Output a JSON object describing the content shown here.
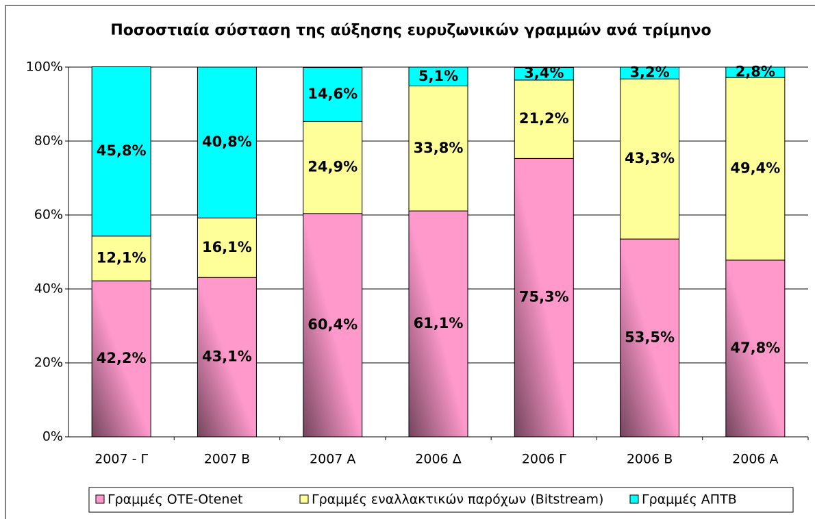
{
  "chart_data": {
    "type": "bar",
    "stacked": true,
    "title": "Ποσοστιαία σύσταση της αύξησης ευρυζωνικών γραμμών ανά τρίμηνο",
    "categories": [
      "2007 - Γ",
      "2007 Β",
      "2007 Α",
      "2006 Δ",
      "2006 Γ",
      "2006 Β",
      "2006 Α"
    ],
    "series": [
      {
        "name": "Γραμμές ΟΤΕ-Otenet",
        "color": "#ff99cc",
        "values": [
          42.2,
          43.1,
          60.4,
          61.1,
          75.3,
          53.5,
          47.8
        ],
        "value_labels": [
          "42,2%",
          "43,1%",
          "60,4%",
          "61,1%",
          "75,3%",
          "53,5%",
          "47,8%"
        ]
      },
      {
        "name": "Γραμμές εναλλακτικών παρόχων (Bitstream)",
        "color": "#ffff99",
        "values": [
          12.1,
          16.1,
          24.9,
          33.8,
          21.2,
          43.3,
          49.4
        ],
        "value_labels": [
          "12,1%",
          "16,1%",
          "24,9%",
          "33,8%",
          "21,2%",
          "43,3%",
          "49,4%"
        ]
      },
      {
        "name": "Γραμμές ΑΠΤΒ",
        "color": "#00ffff",
        "values": [
          45.8,
          40.8,
          14.6,
          5.1,
          3.4,
          3.2,
          2.8
        ],
        "value_labels": [
          "45,8%",
          "40,8%",
          "14,6%",
          "5,1%",
          "3,4%",
          "3,2%",
          "2,8%"
        ]
      }
    ],
    "ylim": [
      0,
      100
    ],
    "yticks": [
      {
        "value": 0,
        "label": "0%"
      },
      {
        "value": 20,
        "label": "20%"
      },
      {
        "value": 40,
        "label": "40%"
      },
      {
        "value": 60,
        "label": "60%"
      },
      {
        "value": 80,
        "label": "80%"
      },
      {
        "value": 100,
        "label": "100%"
      }
    ],
    "grid": true,
    "legend": "bottom"
  }
}
